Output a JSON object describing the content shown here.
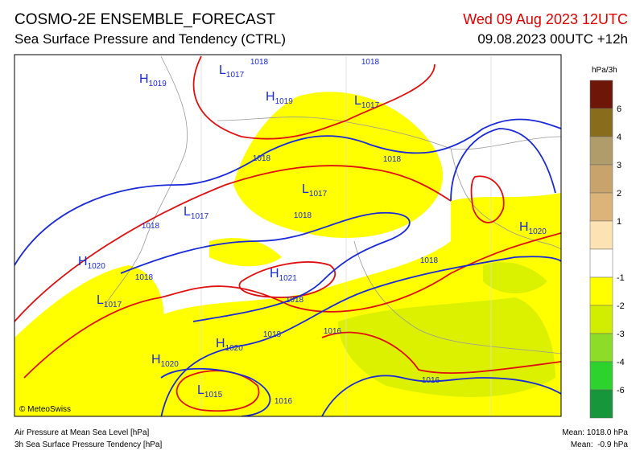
{
  "header": {
    "title": "COSMO-2E ENSEMBLE_FORECAST",
    "subtitle": "Sea Surface Pressure and Tendency (CTRL)",
    "valid_time": "Wed 09 Aug 2023 12UTC",
    "run_time": "09.08.2023 00UTC +12h"
  },
  "map": {
    "centers": [
      {
        "letter": "H",
        "pressure": 1019
      },
      {
        "letter": "L",
        "pressure": 1017
      },
      {
        "letter": "H",
        "pressure": 1019
      },
      {
        "letter": "L",
        "pressure": 1017
      },
      {
        "letter": "L",
        "pressure": 1017
      },
      {
        "letter": "L",
        "pressure": 1017
      },
      {
        "letter": "H",
        "pressure": 1020
      },
      {
        "letter": "H",
        "pressure": 1020
      },
      {
        "letter": "H",
        "pressure": 1021
      },
      {
        "letter": "L",
        "pressure": 1017
      },
      {
        "letter": "H",
        "pressure": 1020
      },
      {
        "letter": "H",
        "pressure": 1020
      },
      {
        "letter": "L",
        "pressure": 1015
      }
    ],
    "isobar_labels": [
      1018,
      1018,
      1018,
      1018,
      1018,
      1018,
      1018,
      1018,
      1018,
      1018,
      1016,
      1016,
      1016
    ],
    "credit": "© MeteoSwiss"
  },
  "legend": {
    "unit": "hPa/3h",
    "ticks": [
      6,
      4,
      3,
      2,
      1,
      -1,
      -2,
      -3,
      -4,
      -6
    ],
    "colors": [
      "#6e1608",
      "#8a6d1c",
      "#b09b6a",
      "#c8a46c",
      "#dcb47a",
      "#fde2b4",
      "#ffffff",
      "#ffff00",
      "#d2ee00",
      "#8cdc28",
      "#2ed22e",
      "#18963c"
    ]
  },
  "footer": {
    "left_line1": "Air Pressure at Mean Sea Level [hPa]",
    "left_line2": "3h Sea Surface Pressure Tendency [hPa]",
    "right_line1": "Mean: 1018.0 hPa",
    "right_line2": "Mean:  -0.9 hPa"
  }
}
